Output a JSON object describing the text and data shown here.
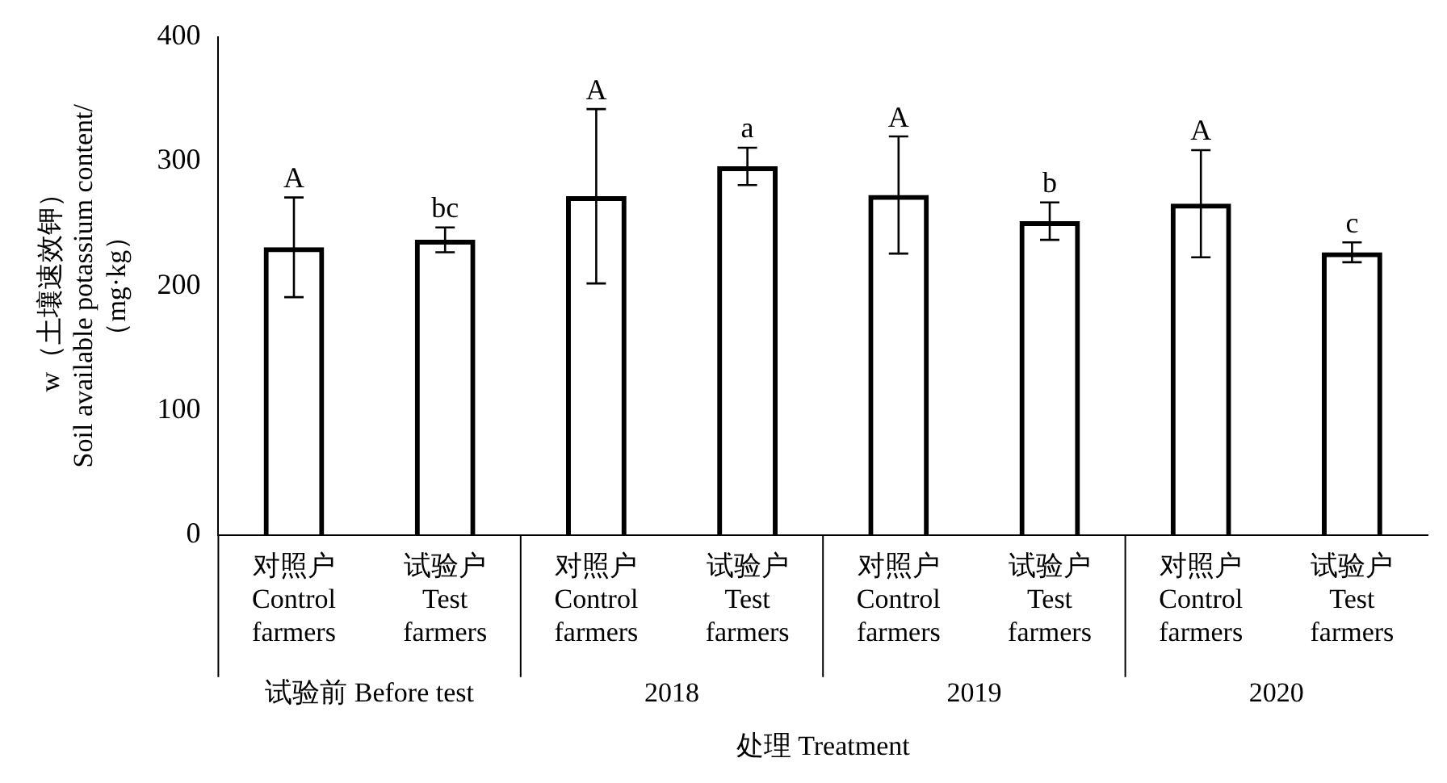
{
  "chart_data": {
    "type": "bar",
    "xlabel": "处理 Treatment",
    "ylabel": "w（土壤速效钾）\nSoil available potassium content/\n（mg·kg）",
    "categories": [
      "对照户\nControl\nfarmers",
      "试验户\nTest\nfarmers",
      "对照户\nControl\nfarmers",
      "试验户\nTest\nfarmers",
      "对照户\nControl\nfarmers",
      "试验户\nTest\nfarmers",
      "对照户\nControl\nfarmers",
      "试验户\nTest\nfarmers"
    ],
    "values": [
      231,
      237,
      272,
      296,
      273,
      252,
      266,
      227
    ],
    "errors": [
      40,
      10,
      70,
      15,
      47,
      15,
      43,
      8
    ],
    "value_labels": [
      "A",
      "bc",
      "A",
      "a",
      "A",
      "b",
      "A",
      "c"
    ],
    "color": "#000000",
    "annotations": [
      "试验前 Before test",
      "2018",
      "2019",
      "2020"
    ],
    "ylim": [
      0,
      400
    ],
    "yticks": [
      0,
      100,
      200,
      300,
      400
    ],
    "grid": false,
    "legend": false
  }
}
